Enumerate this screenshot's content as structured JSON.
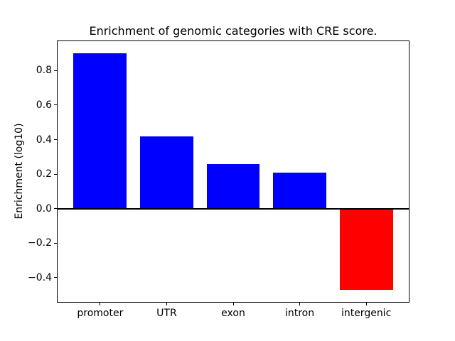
{
  "chart_data": {
    "type": "bar",
    "title": "Enrichment of genomic categories with CRE score.",
    "xlabel": "",
    "ylabel": "Enrichment (log10)",
    "categories": [
      "promoter",
      "UTR",
      "exon",
      "intron",
      "intergenic"
    ],
    "values": [
      0.9,
      0.42,
      0.26,
      0.21,
      -0.47
    ],
    "bar_colors": [
      "#0000ff",
      "#0000ff",
      "#0000ff",
      "#0000ff",
      "#ff0000"
    ],
    "positive_color": "#0000ff",
    "negative_color": "#ff0000",
    "axis_color": "#000000",
    "background_color": "#ffffff",
    "bar_width": 0.8,
    "xlim": [
      -0.64,
      4.64
    ],
    "ylim": [
      -0.54,
      0.97
    ],
    "ytick_values": [
      0.8,
      0.6,
      0.4,
      0.2,
      0.0,
      -0.2,
      -0.4
    ],
    "ytick_labels": [
      "0.8",
      "0.6",
      "0.4",
      "0.2",
      "0.0",
      "−0.2",
      "−0.4"
    ],
    "grid": false,
    "legend": null,
    "zero_line": true
  }
}
